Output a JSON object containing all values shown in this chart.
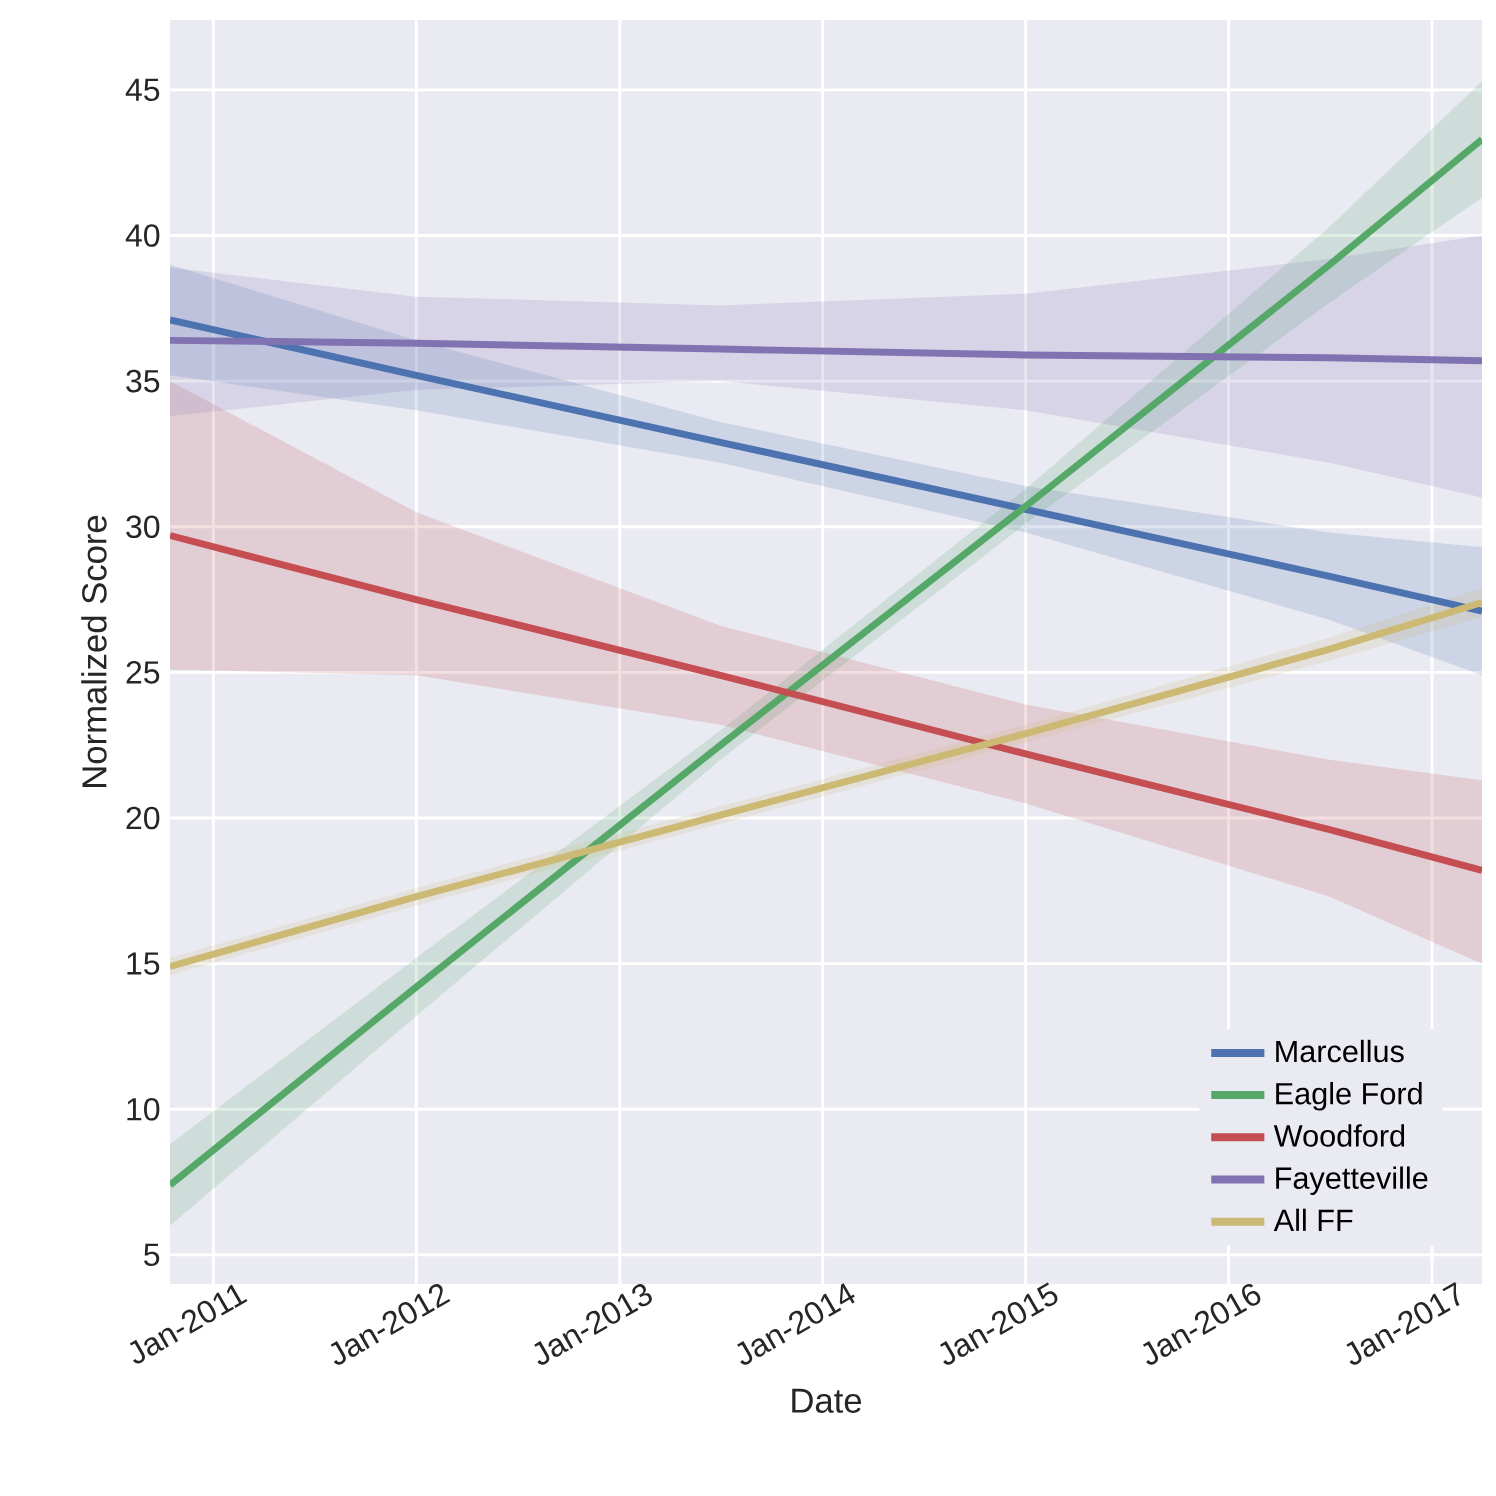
{
  "chart_data": {
    "type": "line",
    "xlabel": "Date",
    "ylabel": "Normalized Score",
    "x": [
      "2010-10-15",
      "2012-01-01",
      "2013-07-01",
      "2015-01-01",
      "2016-07-01",
      "2017-04-01"
    ],
    "series": [
      {
        "name": "Marcellus",
        "color": "#4c72b0",
        "values": [
          37.1,
          35.2,
          32.9,
          30.6,
          28.3,
          27.1
        ],
        "lower": [
          35.2,
          34.0,
          32.2,
          29.8,
          26.8,
          24.9
        ],
        "upper": [
          39.0,
          36.4,
          33.6,
          31.4,
          29.8,
          29.3
        ]
      },
      {
        "name": "Eagle Ford",
        "color": "#55a868",
        "values": [
          7.4,
          14.2,
          22.5,
          30.7,
          39.0,
          43.3
        ],
        "lower": [
          6.0,
          13.2,
          22.0,
          30.1,
          37.7,
          41.3
        ],
        "upper": [
          8.8,
          15.2,
          23.0,
          31.3,
          40.3,
          45.3
        ]
      },
      {
        "name": "Woodford",
        "color": "#c44e52",
        "values": [
          29.7,
          27.5,
          24.9,
          22.2,
          19.6,
          18.2
        ],
        "lower": [
          25.1,
          24.9,
          23.2,
          20.5,
          17.3,
          15.0
        ],
        "upper": [
          35.0,
          30.5,
          26.6,
          23.9,
          22.0,
          21.3
        ]
      },
      {
        "name": "Fayetteville",
        "color": "#8172b2",
        "values": [
          36.4,
          36.3,
          36.1,
          35.9,
          35.8,
          35.7
        ],
        "lower": [
          33.8,
          34.7,
          35.0,
          34.0,
          32.2,
          31.0
        ],
        "upper": [
          38.9,
          37.9,
          37.6,
          38.0,
          39.2,
          40.0
        ]
      },
      {
        "name": "All FF",
        "color": "#ccb974",
        "values": [
          14.9,
          17.3,
          20.1,
          22.9,
          25.8,
          27.4
        ],
        "lower": [
          14.6,
          17.0,
          19.8,
          22.6,
          25.4,
          26.9
        ],
        "upper": [
          15.2,
          17.6,
          20.4,
          23.2,
          26.2,
          27.9
        ]
      }
    ],
    "xlim": [
      "2010-10-15",
      "2017-04-01"
    ],
    "xticks": [
      {
        "value": "2011-01-01",
        "label": "Jan-2011"
      },
      {
        "value": "2012-01-01",
        "label": "Jan-2012"
      },
      {
        "value": "2013-01-01",
        "label": "Jan-2013"
      },
      {
        "value": "2014-01-01",
        "label": "Jan-2014"
      },
      {
        "value": "2015-01-01",
        "label": "Jan-2015"
      },
      {
        "value": "2016-01-01",
        "label": "Jan-2016"
      },
      {
        "value": "2017-01-01",
        "label": "Jan-2017"
      }
    ],
    "ylim": [
      4,
      47.4
    ],
    "yticks": [
      5,
      10,
      15,
      20,
      25,
      30,
      35,
      40,
      45
    ],
    "grid": true,
    "legend": "bottom right",
    "marker": "none",
    "line_style": "solid"
  }
}
